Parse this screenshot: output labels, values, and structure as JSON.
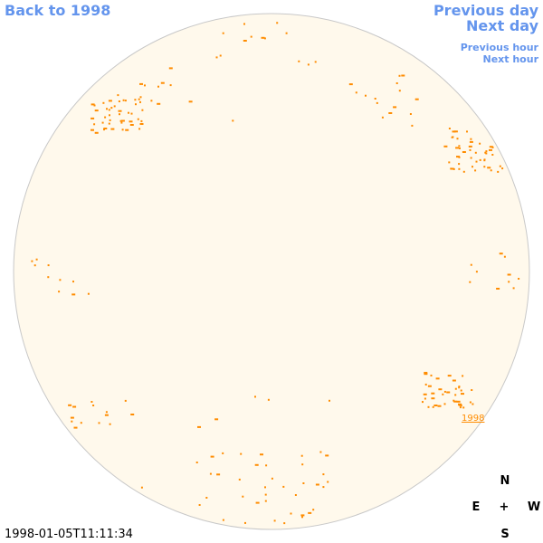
{
  "navigation": {
    "back": "Back to 1998",
    "previous_day": "Previous day",
    "next_day": "Next day",
    "previous_hour": "Previous hour",
    "next_hour": "Next hour"
  },
  "disk_label": "1998",
  "compass": {
    "north": "N",
    "east": "E",
    "center": "+",
    "west": "W",
    "south": "S"
  },
  "timestamp": "1998-01-05T11:11:34"
}
